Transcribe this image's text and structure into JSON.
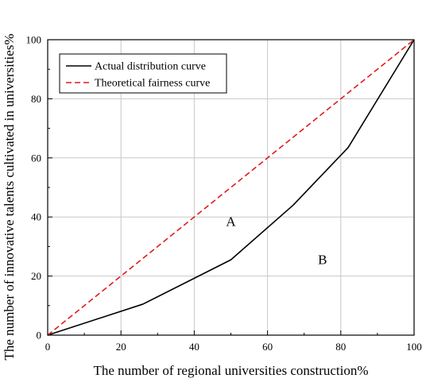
{
  "chart_data": {
    "type": "line",
    "xlabel": "The number of regional universities construction%",
    "ylabel": "The number of innovative talents cultivated in universities%",
    "xlim": [
      0,
      100
    ],
    "ylim": [
      0,
      100
    ],
    "xticks": [
      "0",
      "20",
      "40",
      "60",
      "80",
      "100"
    ],
    "yticks": [
      "0",
      "20",
      "40",
      "60",
      "80",
      "100"
    ],
    "grid": true,
    "legend_position": "top-left",
    "series": [
      {
        "name": "Actual distribution curve",
        "color": "#000000",
        "style": "solid",
        "x": [
          0,
          26,
          50,
          67,
          82,
          100
        ],
        "y": [
          0,
          10.5,
          25.5,
          44,
          63.5,
          100
        ]
      },
      {
        "name": "Theoretical fairness curve",
        "color": "#e31a1c",
        "style": "dashed",
        "x": [
          0,
          100
        ],
        "y": [
          0,
          100
        ]
      }
    ],
    "annotations": [
      {
        "text": "A",
        "x": 50,
        "y": 37
      },
      {
        "text": "B",
        "x": 75,
        "y": 24
      }
    ]
  }
}
